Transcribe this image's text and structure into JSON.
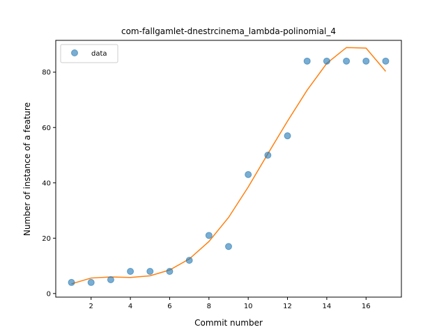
{
  "chart_data": {
    "type": "scatter",
    "title": "com-fallgamlet-dnestrcinema_lambda-polinomial_4",
    "xlabel": "Commit number",
    "ylabel": "Number of instance of a feature",
    "xlim": [
      0.2,
      17.8
    ],
    "ylim": [
      -1.3,
      91.5
    ],
    "xticks": [
      2,
      4,
      6,
      8,
      10,
      12,
      14,
      16
    ],
    "yticks": [
      0,
      20,
      40,
      60,
      80
    ],
    "grid": false,
    "legend": {
      "position": "top-left",
      "entries": [
        "data"
      ]
    },
    "series": [
      {
        "name": "data",
        "kind": "scatter",
        "color": "#1f77b4",
        "x": [
          1,
          2,
          3,
          4,
          5,
          6,
          7,
          8,
          9,
          10,
          11,
          12,
          13,
          14,
          15,
          16,
          17
        ],
        "y": [
          4,
          4,
          5,
          8,
          8,
          8,
          12,
          21,
          17,
          43,
          50,
          57,
          84,
          84,
          84,
          84,
          84
        ]
      },
      {
        "kind": "line",
        "color": "#ff7f0e",
        "x": [
          1,
          2,
          3,
          4,
          5,
          6,
          7,
          8,
          9,
          10,
          11,
          12,
          13,
          14,
          15,
          16,
          17
        ],
        "y": [
          3.5,
          5.6,
          6.0,
          5.8,
          6.4,
          8.5,
          12.5,
          18.8,
          27.5,
          38.5,
          50.5,
          62.3,
          73.5,
          83.2,
          88.9,
          88.7,
          80.3
        ]
      }
    ]
  }
}
